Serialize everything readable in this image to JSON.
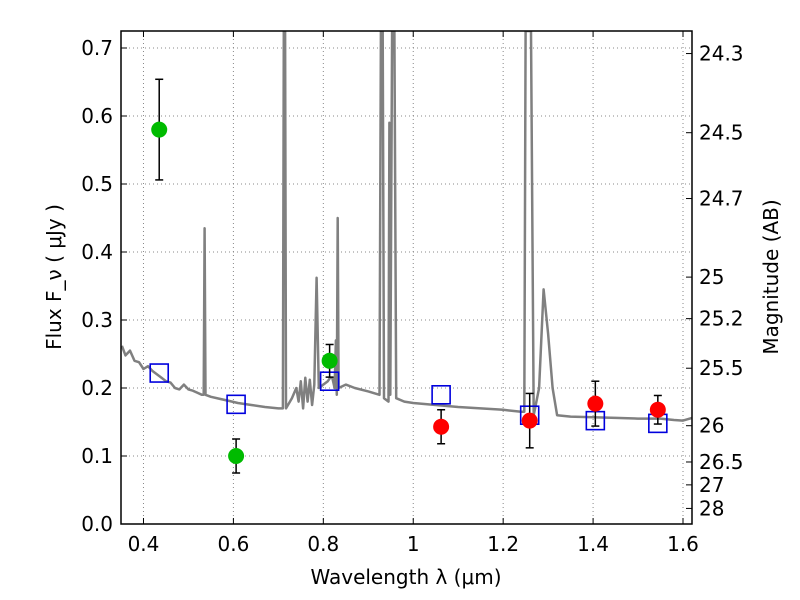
{
  "chart_data": {
    "type": "scatter",
    "xlabel": "Wavelength  λ (μm)",
    "ylabel": "Flux  F_ν  ( μJy )",
    "ylabel_right": "Magnitude (AB)",
    "xlim": [
      0.35,
      1.62
    ],
    "ylim": [
      0.0,
      0.725
    ],
    "grid": true,
    "x_ticks": [
      {
        "value": 0.4,
        "label": "0.4"
      },
      {
        "value": 0.6,
        "label": "0.6"
      },
      {
        "value": 0.8,
        "label": "0.8"
      },
      {
        "value": 1.0,
        "label": "1"
      },
      {
        "value": 1.2,
        "label": "1.2"
      },
      {
        "value": 1.4,
        "label": "1.4"
      },
      {
        "value": 1.6,
        "label": "1.6"
      }
    ],
    "y_ticks": [
      {
        "value": 0.0,
        "label": "0.0"
      },
      {
        "value": 0.1,
        "label": "0.1"
      },
      {
        "value": 0.2,
        "label": "0.2"
      },
      {
        "value": 0.3,
        "label": "0.3"
      },
      {
        "value": 0.4,
        "label": "0.4"
      },
      {
        "value": 0.5,
        "label": "0.5"
      },
      {
        "value": 0.6,
        "label": "0.6"
      },
      {
        "value": 0.7,
        "label": "0.7"
      }
    ],
    "right_ticks": [
      {
        "mag": 24.3,
        "label": "24.3"
      },
      {
        "mag": 24.5,
        "label": "24.5"
      },
      {
        "mag": 24.7,
        "label": "24.7"
      },
      {
        "mag": 25.0,
        "label": "25"
      },
      {
        "mag": 25.2,
        "label": "25.2"
      },
      {
        "mag": 25.5,
        "label": "25.5"
      },
      {
        "mag": 26.0,
        "label": "26"
      },
      {
        "mag": 26.5,
        "label": "26.5"
      },
      {
        "mag": 27.0,
        "label": "27"
      },
      {
        "mag": 28.0,
        "label": "28"
      }
    ],
    "colors": {
      "green": "#00bb00",
      "red": "#ff0000",
      "model_boxes": "#0000dd",
      "spectrum": "#808080",
      "grid": "#888888",
      "errorbar": "#000000"
    },
    "series": [
      {
        "kind": "line",
        "points": [
          [
            0.352,
            0.262
          ],
          [
            0.36,
            0.248
          ],
          [
            0.37,
            0.255
          ],
          [
            0.38,
            0.24
          ],
          [
            0.39,
            0.238
          ],
          [
            0.4,
            0.228
          ],
          [
            0.41,
            0.232
          ],
          [
            0.42,
            0.225
          ],
          [
            0.43,
            0.22
          ],
          [
            0.44,
            0.215
          ],
          [
            0.45,
            0.21
          ],
          [
            0.46,
            0.208
          ],
          [
            0.47,
            0.2
          ],
          [
            0.48,
            0.198
          ],
          [
            0.49,
            0.205
          ],
          [
            0.5,
            0.198
          ],
          [
            0.51,
            0.196
          ],
          [
            0.52,
            0.193
          ],
          [
            0.53,
            0.19
          ],
          [
            0.534,
            0.19
          ],
          [
            0.536,
            0.435
          ],
          [
            0.538,
            0.19
          ],
          [
            0.55,
            0.187
          ],
          [
            0.57,
            0.184
          ],
          [
            0.59,
            0.181
          ],
          [
            0.61,
            0.178
          ],
          [
            0.64,
            0.175
          ],
          [
            0.67,
            0.172
          ],
          [
            0.7,
            0.17
          ],
          [
            0.71,
            0.17
          ],
          [
            0.712,
            0.725
          ],
          [
            0.715,
            0.725
          ],
          [
            0.717,
            0.17
          ],
          [
            0.73,
            0.185
          ],
          [
            0.74,
            0.2
          ],
          [
            0.745,
            0.18
          ],
          [
            0.75,
            0.21
          ],
          [
            0.755,
            0.17
          ],
          [
            0.76,
            0.215
          ],
          [
            0.765,
            0.18
          ],
          [
            0.77,
            0.212
          ],
          [
            0.775,
            0.175
          ],
          [
            0.78,
            0.205
          ],
          [
            0.785,
            0.362
          ],
          [
            0.79,
            0.2
          ],
          [
            0.8,
            0.205
          ],
          [
            0.81,
            0.21
          ],
          [
            0.815,
            0.215
          ],
          [
            0.82,
            0.215
          ],
          [
            0.825,
            0.2
          ],
          [
            0.828,
            0.27
          ],
          [
            0.83,
            0.19
          ],
          [
            0.832,
            0.45
          ],
          [
            0.834,
            0.2
          ],
          [
            0.85,
            0.205
          ],
          [
            0.87,
            0.2
          ],
          [
            0.9,
            0.195
          ],
          [
            0.925,
            0.19
          ],
          [
            0.928,
            0.725
          ],
          [
            0.932,
            0.725
          ],
          [
            0.935,
            0.185
          ],
          [
            0.945,
            0.18
          ],
          [
            0.947,
            0.59
          ],
          [
            0.949,
            0.19
          ],
          [
            0.953,
            0.725
          ],
          [
            0.958,
            0.725
          ],
          [
            0.962,
            0.185
          ],
          [
            0.98,
            0.18
          ],
          [
            1.0,
            0.178
          ],
          [
            1.05,
            0.175
          ],
          [
            1.1,
            0.172
          ],
          [
            1.15,
            0.17
          ],
          [
            1.2,
            0.168
          ],
          [
            1.24,
            0.165
          ],
          [
            1.247,
            0.165
          ],
          [
            1.25,
            0.725
          ],
          [
            1.262,
            0.725
          ],
          [
            1.268,
            0.16
          ],
          [
            1.28,
            0.2
          ],
          [
            1.29,
            0.345
          ],
          [
            1.3,
            0.28
          ],
          [
            1.31,
            0.2
          ],
          [
            1.32,
            0.16
          ],
          [
            1.35,
            0.158
          ],
          [
            1.4,
            0.157
          ],
          [
            1.45,
            0.156
          ],
          [
            1.5,
            0.155
          ],
          [
            1.55,
            0.155
          ],
          [
            1.58,
            0.153
          ],
          [
            1.6,
            0.152
          ],
          [
            1.62,
            0.156
          ]
        ]
      },
      {
        "kind": "points",
        "marker": "circle",
        "color_key": "green",
        "points": [
          {
            "x": 0.435,
            "y": 0.58,
            "yerr": 0.074
          },
          {
            "x": 0.606,
            "y": 0.1,
            "yerr": 0.025
          },
          {
            "x": 0.814,
            "y": 0.24,
            "yerr": 0.024
          }
        ]
      },
      {
        "kind": "points",
        "marker": "circle",
        "color_key": "red",
        "points": [
          {
            "x": 1.062,
            "y": 0.143,
            "yerr": 0.025
          },
          {
            "x": 1.259,
            "y": 0.152,
            "yerr": 0.04
          },
          {
            "x": 1.405,
            "y": 0.177,
            "yerr": 0.033
          },
          {
            "x": 1.544,
            "y": 0.168,
            "yerr": 0.021
          }
        ]
      },
      {
        "kind": "points",
        "marker": "open-square",
        "color_key": "model_boxes",
        "points": [
          {
            "x": 0.435,
            "y": 0.222
          },
          {
            "x": 0.606,
            "y": 0.176
          },
          {
            "x": 0.814,
            "y": 0.21
          },
          {
            "x": 1.062,
            "y": 0.19
          },
          {
            "x": 1.259,
            "y": 0.16
          },
          {
            "x": 1.405,
            "y": 0.152
          },
          {
            "x": 1.544,
            "y": 0.148
          }
        ]
      }
    ]
  }
}
